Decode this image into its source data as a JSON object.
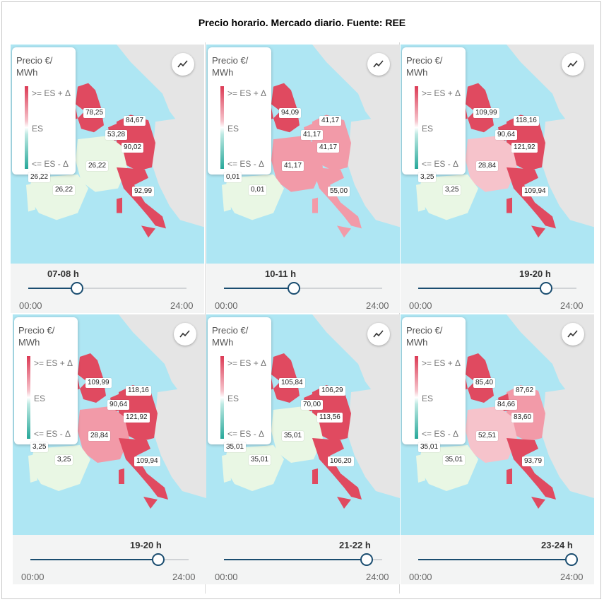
{
  "title": "Precio horario. Mercado diario. Fuente: REE",
  "legend": {
    "title": "Precio €/\nMWh",
    "high": ">= ES + Δ",
    "mid": "ES",
    "low": "<= ES - Δ"
  },
  "axis": {
    "start": "00:00",
    "end": "24:00"
  },
  "colors": {
    "sea": "#aee6f3",
    "land": "#e5e5e5",
    "es": "#e9f7e4",
    "high": "#e04a60",
    "mid": "#f29aa8",
    "light": "#f6c3cb",
    "slider": "#1a4d70"
  },
  "panels": [
    {
      "hour": "07-08 h",
      "progress": 0.31,
      "prices": {
        "uk": "78,25",
        "be": "53,28",
        "nl": "84,67",
        "de": "90,02",
        "fr": "26,22",
        "es": "26,22",
        "pt": "26,22",
        "it": "92,99"
      }
    },
    {
      "hour": "10-11 h",
      "progress": 0.44,
      "prices": {
        "uk": "94,09",
        "be": "41,17",
        "nl": "41,17",
        "de": "41,17",
        "fr": "41,17",
        "es": "0,01",
        "pt": "0,01",
        "it": "55,00"
      }
    },
    {
      "hour": "19-20 h",
      "progress": 0.81,
      "prices": {
        "uk": "109,99",
        "be": "90,64",
        "nl": "118,16",
        "de": "121,92",
        "fr": "28,84",
        "es": "3,25",
        "pt": "3,25",
        "it": "109,94"
      }
    },
    {
      "hour": "19-20 h",
      "progress": 0.81,
      "prices": {
        "uk": "109,99",
        "be": "90,64",
        "nl": "118,16",
        "de": "121,92",
        "fr": "28,84",
        "es": "3,25",
        "pt": "3,25",
        "it": "109,94"
      }
    },
    {
      "hour": "21-22 h",
      "progress": 0.9,
      "prices": {
        "uk": "105,84",
        "be": "70,00",
        "nl": "106,29",
        "de": "113,56",
        "fr": "35,01",
        "es": "35,01",
        "pt": "35,01",
        "it": "106,20"
      }
    },
    {
      "hour": "23-24 h",
      "progress": 0.97,
      "prices": {
        "uk": "85,40",
        "be": "84,66",
        "nl": "87,62",
        "de": "83,60",
        "fr": "52,51",
        "es": "35,01",
        "pt": "35,01",
        "it": "93,79"
      }
    }
  ]
}
